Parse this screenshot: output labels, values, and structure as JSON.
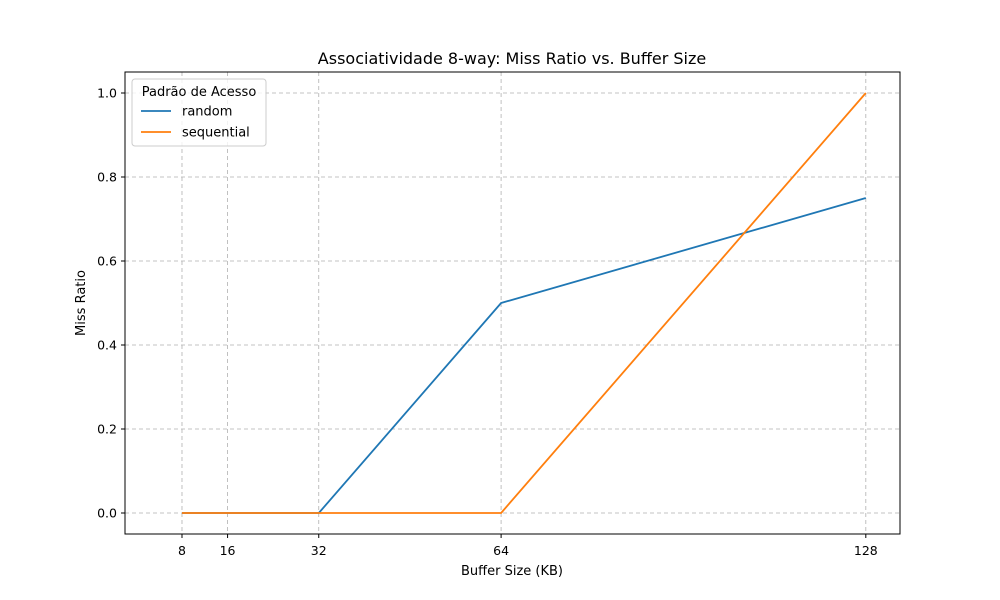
{
  "chart_data": {
    "type": "line",
    "title": "Associatividade 8-way: Miss Ratio vs. Buffer Size",
    "xlabel": "Buffer Size (KB)",
    "ylabel": "Miss Ratio",
    "x": [
      8,
      32,
      64,
      128
    ],
    "xticks": [
      8,
      16,
      32,
      64,
      128
    ],
    "xlim": [
      -2,
      134
    ],
    "yticks": [
      0.0,
      0.2,
      0.4,
      0.6,
      0.8,
      1.0
    ],
    "ytick_labels": [
      "0.0",
      "0.2",
      "0.4",
      "0.6",
      "0.8",
      "1.0"
    ],
    "ylim": [
      -0.05,
      1.05
    ],
    "grid": true,
    "legend": {
      "title": "Padrão de Acesso",
      "position": "top-left"
    },
    "series": [
      {
        "name": "random",
        "color": "#1f77b4",
        "values": [
          0.0,
          0.0,
          0.5,
          0.75
        ]
      },
      {
        "name": "sequential",
        "color": "#ff7f0e",
        "values": [
          0.0,
          0.0,
          0.0,
          1.0
        ]
      }
    ]
  }
}
